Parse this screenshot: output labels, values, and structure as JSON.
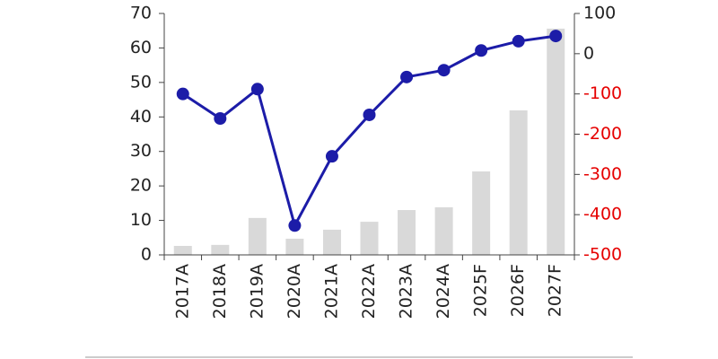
{
  "chart_data": {
    "type": "bar-line",
    "categories": [
      "2017A",
      "2018A",
      "2019A",
      "2020A",
      "2021A",
      "2022A",
      "2023A",
      "2024A",
      "2025F",
      "2026F",
      "2027F"
    ],
    "series": [
      {
        "type": "bar",
        "color": "#d9d9d9",
        "values": [
          2.6,
          2.9,
          10.7,
          4.7,
          7.3,
          9.6,
          13,
          13.8,
          24.2,
          41.9,
          65.6
        ]
      },
      {
        "type": "line",
        "axis": "y2",
        "color": "#1c1ca8",
        "values": [
          -100,
          -161,
          -88,
          -427,
          -255,
          -152,
          -58,
          -41,
          8,
          31,
          44
        ]
      }
    ],
    "ylim": [
      0,
      70
    ],
    "yticks": [
      0,
      10,
      20,
      30,
      40,
      50,
      60,
      70
    ],
    "y2lim": [
      -500,
      100
    ],
    "y2ticks": [
      -500,
      -400,
      -300,
      -200,
      -100,
      0,
      100
    ],
    "y2_negative_tick_color": "#e60000"
  }
}
